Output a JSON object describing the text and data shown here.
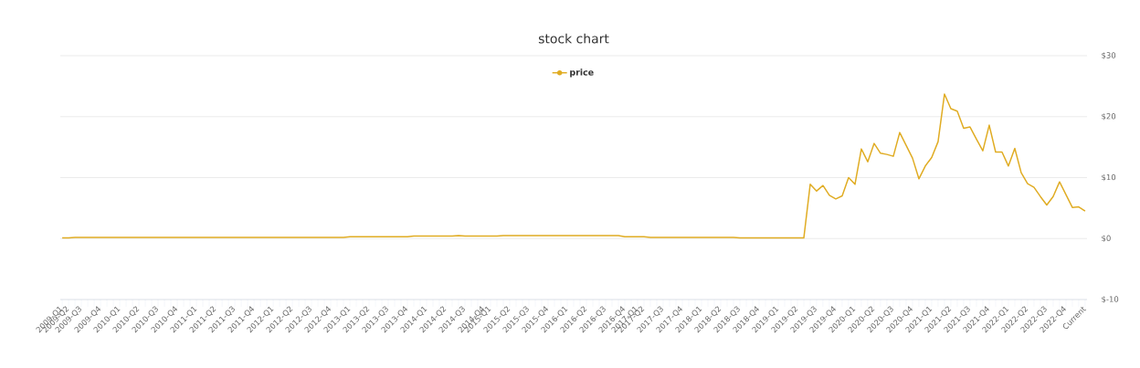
{
  "chart_data": {
    "type": "line",
    "title": "stock chart",
    "categories": [
      "2009-Q1",
      "2009-Q2",
      null,
      "2009-Q3",
      null,
      null,
      "2009-Q4",
      null,
      null,
      "2010-Q1",
      null,
      null,
      "2010-Q2",
      null,
      null,
      "2010-Q3",
      null,
      null,
      "2010-Q4",
      null,
      null,
      "2011-Q1",
      null,
      null,
      "2011-Q2",
      null,
      null,
      "2011-Q3",
      null,
      null,
      "2011-Q4",
      null,
      null,
      "2012-Q1",
      null,
      null,
      "2012-Q2",
      null,
      null,
      "2012-Q3",
      null,
      null,
      "2012-Q4",
      null,
      null,
      "2013-Q1",
      null,
      null,
      "2013-Q2",
      null,
      null,
      "2013-Q3",
      null,
      null,
      "2013-Q4",
      null,
      null,
      "2014-Q1",
      null,
      null,
      "2014-Q2",
      null,
      null,
      "2014-Q3",
      null,
      null,
      "2014-Q4",
      "2015-Q1",
      null,
      null,
      "2015-Q2",
      null,
      null,
      "2015-Q3",
      null,
      null,
      "2015-Q4",
      null,
      null,
      "2016-Q1",
      null,
      null,
      "2016-Q2",
      null,
      null,
      "2016-Q3",
      null,
      null,
      "2016-Q4",
      null,
      "2017-Q1",
      "2017-Q2",
      null,
      null,
      "2017-Q3",
      null,
      null,
      "2017-Q4",
      null,
      null,
      "2018-Q1",
      null,
      null,
      "2018-Q2",
      null,
      null,
      "2018-Q3",
      null,
      null,
      "2018-Q4",
      null,
      null,
      "2019-Q1",
      null,
      null,
      "2019-Q2",
      null,
      null,
      "2019-Q3",
      null,
      null,
      "2019-Q4",
      null,
      null,
      "2020-Q1",
      null,
      null,
      "2020-Q2",
      null,
      null,
      "2020-Q3",
      null,
      null,
      "2020-Q4",
      null,
      null,
      "2021-Q1",
      null,
      null,
      "2021-Q2",
      null,
      null,
      "2021-Q3",
      null,
      null,
      "2021-Q4",
      null,
      null,
      "2022-Q1",
      null,
      null,
      "2022-Q2",
      null,
      null,
      "2022-Q3",
      null,
      null,
      "2022-Q4",
      null,
      null,
      "Current"
    ],
    "series": [
      {
        "name": "price",
        "color": "#e0ac23",
        "values": [
          0.1,
          0.1,
          0.2,
          0.2,
          0.2,
          0.2,
          0.2,
          0.2,
          0.2,
          0.2,
          0.2,
          0.2,
          0.2,
          0.2,
          0.2,
          0.2,
          0.2,
          0.2,
          0.2,
          0.2,
          0.2,
          0.2,
          0.2,
          0.2,
          0.2,
          0.2,
          0.2,
          0.2,
          0.2,
          0.2,
          0.2,
          0.2,
          0.2,
          0.2,
          0.2,
          0.2,
          0.2,
          0.2,
          0.2,
          0.2,
          0.2,
          0.2,
          0.2,
          0.2,
          0.2,
          0.3,
          0.3,
          0.3,
          0.3,
          0.3,
          0.3,
          0.3,
          0.3,
          0.3,
          0.3,
          0.4,
          0.4,
          0.4,
          0.4,
          0.4,
          0.4,
          0.4,
          0.5,
          0.4,
          0.4,
          0.4,
          0.4,
          0.4,
          0.4,
          0.5,
          0.5,
          0.5,
          0.5,
          0.5,
          0.5,
          0.5,
          0.5,
          0.5,
          0.5,
          0.5,
          0.5,
          0.5,
          0.5,
          0.5,
          0.5,
          0.5,
          0.5,
          0.5,
          0.3,
          0.3,
          0.3,
          0.3,
          0.2,
          0.2,
          0.2,
          0.2,
          0.2,
          0.2,
          0.2,
          0.2,
          0.2,
          0.2,
          0.2,
          0.2,
          0.2,
          0.2,
          0.1,
          0.1,
          0.1,
          0.1,
          0.1,
          0.1,
          0.1,
          0.1,
          0.1,
          0.1,
          0.1,
          8.9,
          7.8,
          8.7,
          7.1,
          6.5,
          7.0,
          10.0,
          8.9,
          14.7,
          12.6,
          15.6,
          14.0,
          13.8,
          13.5,
          17.4,
          15.3,
          13.2,
          9.8,
          11.9,
          13.3,
          15.9,
          23.7,
          21.3,
          20.9,
          18.1,
          18.3,
          16.3,
          14.4,
          18.6,
          14.2,
          14.2,
          11.9,
          14.8,
          10.8,
          9.0,
          8.4,
          6.9,
          5.5,
          6.9,
          9.3,
          7.2,
          5.1,
          5.2,
          4.5
        ]
      }
    ],
    "ylim": [
      -10,
      30
    ],
    "yticks": [
      {
        "value": -10,
        "label": "$-10"
      },
      {
        "value": 0,
        "label": "$0"
      },
      {
        "value": 10,
        "label": "$10"
      },
      {
        "value": 20,
        "label": "$20"
      },
      {
        "value": 30,
        "label": "$30"
      }
    ],
    "grid": "y",
    "legend": "top",
    "marker": "none",
    "line_style": "solid"
  }
}
